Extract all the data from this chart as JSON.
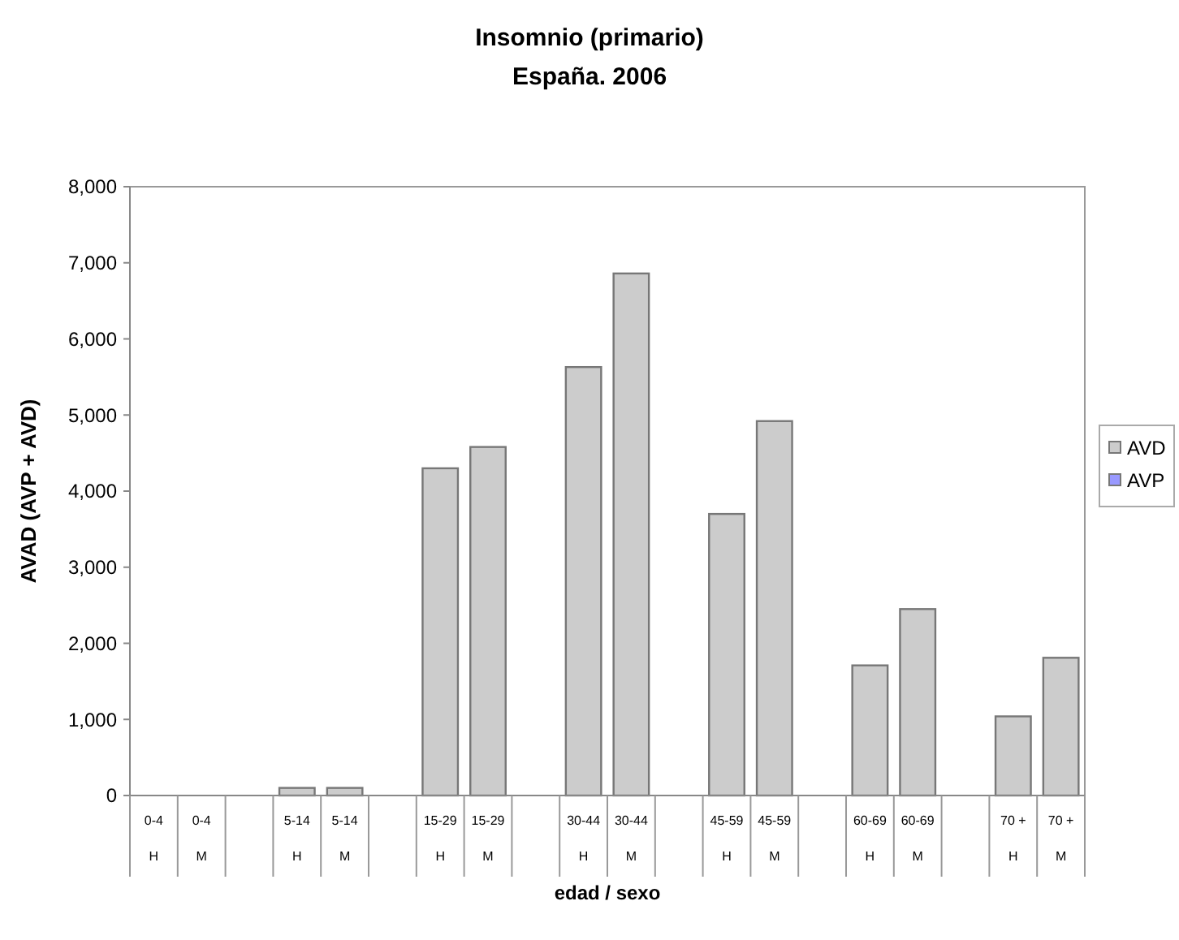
{
  "chart_data": {
    "type": "bar",
    "title": "Insomnio (primario)",
    "subtitle": "España. 2006",
    "xlabel": "edad / sexo",
    "ylabel": "AVAD (AVP + AVD)",
    "categories": [
      "0-4\nH",
      "0-4\nM",
      null,
      "5-14\nH",
      "5-14\nM",
      null,
      "15-29\nH",
      "15-29\nM",
      null,
      "30-44\nH",
      "30-44\nM",
      null,
      "45-59\nH",
      "45-59\nM",
      null,
      "60-69\nH",
      "60-69\nM",
      null,
      "70 +\nH",
      "70 +\nM"
    ],
    "stacked": true,
    "series": [
      {
        "name": "AVD",
        "color": "#cccccc",
        "values": [
          0,
          0,
          null,
          100,
          100,
          null,
          4300,
          4580,
          null,
          5630,
          6860,
          null,
          3700,
          4920,
          null,
          1710,
          2450,
          null,
          1040,
          1810
        ]
      },
      {
        "name": "AVP",
        "color": "#9999ff",
        "values": [
          0,
          0,
          null,
          0,
          0,
          null,
          0,
          0,
          null,
          0,
          0,
          null,
          0,
          0,
          null,
          0,
          0,
          null,
          0,
          0
        ]
      }
    ],
    "ylim": [
      0,
      8000
    ],
    "yticks": [
      {
        "value": 0,
        "label": "0"
      },
      {
        "value": 1000,
        "label": "1,000"
      },
      {
        "value": 2000,
        "label": "2,000"
      },
      {
        "value": 3000,
        "label": "3,000"
      },
      {
        "value": 4000,
        "label": "4,000"
      },
      {
        "value": 5000,
        "label": "5,000"
      },
      {
        "value": 6000,
        "label": "6,000"
      },
      {
        "value": 7000,
        "label": "7,000"
      },
      {
        "value": 8000,
        "label": "8,000"
      }
    ],
    "grid": false,
    "legend": "right"
  }
}
